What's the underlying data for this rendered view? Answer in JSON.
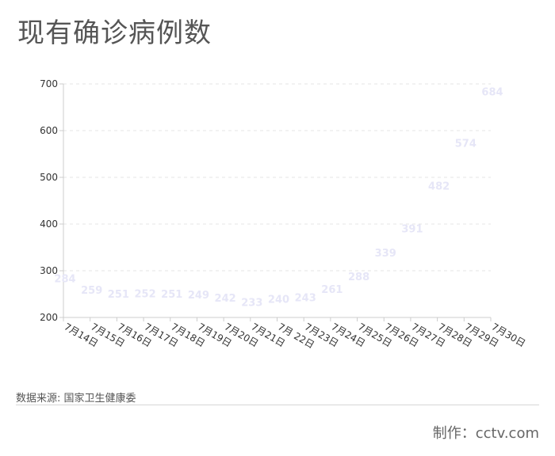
{
  "title": "现有确诊病例数",
  "source": "数据来源: 国家卫生健康委",
  "credit": "制作：cctv.com",
  "colors": {
    "label": "#e6e6f7",
    "axis": "#cccccc",
    "grid": "#e6e6e6",
    "text": "#333333"
  },
  "chart_data": {
    "type": "scatter",
    "title": "现有确诊病例数",
    "xlabel": "",
    "ylabel": "",
    "categories": [
      "7月14日",
      "7月15日",
      "7月16日",
      "7月17日",
      "7月18日",
      "7月19日",
      "7月20日",
      "7月21日",
      "7月 22日",
      "7月23日",
      "7月24日",
      "7月25日",
      "7月26日",
      "7月27日",
      "7月28日",
      "7月29日",
      "7月30日"
    ],
    "values": [
      284,
      259,
      251,
      252,
      251,
      249,
      242,
      233,
      240,
      243,
      261,
      288,
      339,
      391,
      482,
      574,
      684
    ],
    "ylim": [
      200,
      700
    ],
    "yticks": [
      200,
      300,
      400,
      500,
      600,
      700
    ],
    "grid": true,
    "legend": "none"
  }
}
